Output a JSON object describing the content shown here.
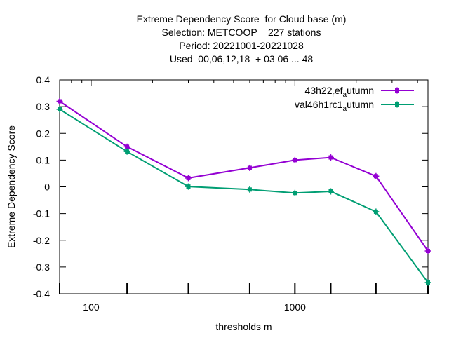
{
  "chart_data": {
    "type": "line",
    "title_lines": [
      "Extreme Dependency Score  for Cloud base (m)",
      "Selection: METCOOP    227 stations",
      "Period: 20221001-20221028",
      "Used  00,06,12,18  + 03 06 ... 48"
    ],
    "xlabel": "thresholds m",
    "ylabel": "Extreme Dependency Score",
    "x_scale": "log",
    "xlim": [
      70,
      4500
    ],
    "ylim": [
      -0.4,
      0.4
    ],
    "y_ticks": [
      -0.4,
      -0.3,
      -0.2,
      -0.1,
      0,
      0.1,
      0.2,
      0.3,
      0.4
    ],
    "y_tick_labels": [
      "-0.4",
      "-0.3",
      "-0.2",
      "-0.1",
      "0",
      "0.1",
      "0.2",
      "0.3",
      "0.4"
    ],
    "x_tick_labels": [
      {
        "value": 100,
        "label": "100"
      },
      {
        "value": 1000,
        "label": "1000"
      }
    ],
    "x": [
      70,
      150,
      300,
      600,
      1000,
      1500,
      2500,
      4500
    ],
    "legend_position": "top-right",
    "series": [
      {
        "legend_parts": [
          {
            "text": "43h22",
            "style": "normal"
          },
          {
            "text": "r",
            "style": "sub"
          },
          {
            "text": "ef",
            "style": "normal"
          },
          {
            "text": "a",
            "style": "sub"
          },
          {
            "text": "utumn",
            "style": "normal"
          }
        ],
        "color": "#9400d3",
        "values": [
          0.32,
          0.15,
          0.033,
          0.071,
          0.1,
          0.11,
          0.04,
          -0.24
        ]
      },
      {
        "legend_parts": [
          {
            "text": "val46h1rc1",
            "style": "normal"
          },
          {
            "text": "a",
            "style": "sub"
          },
          {
            "text": "utumn",
            "style": "normal"
          }
        ],
        "color": "#009e73",
        "values": [
          0.29,
          0.132,
          0.001,
          -0.01,
          -0.023,
          -0.017,
          -0.093,
          -0.358
        ]
      }
    ]
  }
}
